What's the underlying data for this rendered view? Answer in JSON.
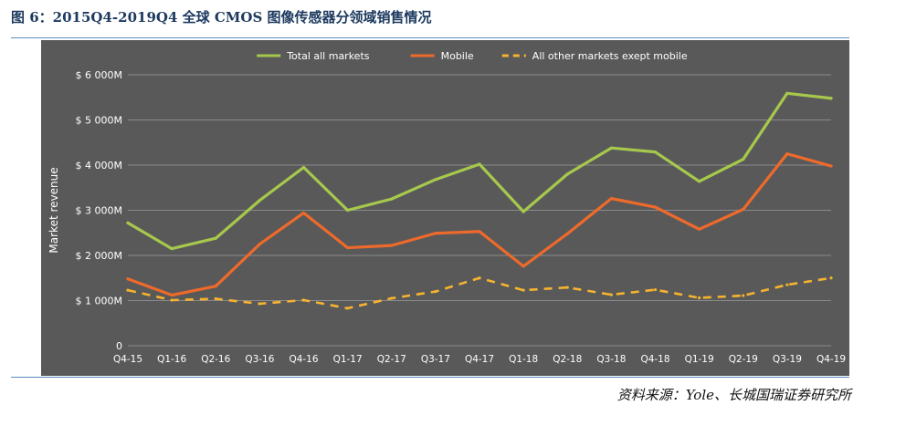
{
  "figure": {
    "title": "图 6：2015Q4-2019Q4 全球 CMOS 图像传感器分领域销售情况",
    "source": "资料来源：Yole、长城国瑞证券研究所"
  },
  "colors": {
    "background": "#595959",
    "grid": "#8a8a8a",
    "text": "#ffffff",
    "total": "#a6c84c",
    "mobile": "#ee6a2b",
    "other": "#f6b330"
  },
  "chart_data": {
    "type": "line",
    "ylabel": "Market revenue",
    "ylim": [
      0,
      6000
    ],
    "yticks": [
      0,
      1000,
      2000,
      3000,
      4000,
      5000,
      6000
    ],
    "ytick_labels": [
      "0",
      "$ 1 000M",
      "$ 2 000M",
      "$ 3 000M",
      "$ 4 000M",
      "$ 5 000M",
      "$ 6 000M"
    ],
    "grid": true,
    "legend_position": "top-center",
    "categories": [
      "Q4-15",
      "Q1-16",
      "Q2-16",
      "Q3-16",
      "Q4-16",
      "Q1-17",
      "Q2-17",
      "Q3-17",
      "Q4-17",
      "Q1-18",
      "Q2-18",
      "Q3-18",
      "Q4-18",
      "Q1-19",
      "Q2-19",
      "Q3-19",
      "Q4-19"
    ],
    "series": [
      {
        "name": "Total all markets",
        "style": "solid",
        "color": "#a6c84c",
        "values": [
          2720,
          2150,
          2380,
          3220,
          3950,
          3000,
          3250,
          3680,
          4020,
          2970,
          3800,
          4380,
          4290,
          3640,
          4130,
          5590,
          5480
        ]
      },
      {
        "name": "Mobile",
        "style": "solid",
        "color": "#ee6a2b",
        "values": [
          1480,
          1120,
          1320,
          2250,
          2940,
          2170,
          2220,
          2490,
          2530,
          1760,
          2480,
          3260,
          3070,
          2580,
          3020,
          4250,
          3980
        ]
      },
      {
        "name": "All other markets exept mobile",
        "style": "dashed",
        "color": "#f6b330",
        "values": [
          1230,
          1010,
          1040,
          930,
          1010,
          830,
          1050,
          1200,
          1500,
          1230,
          1290,
          1130,
          1240,
          1060,
          1110,
          1350,
          1500
        ]
      }
    ]
  }
}
